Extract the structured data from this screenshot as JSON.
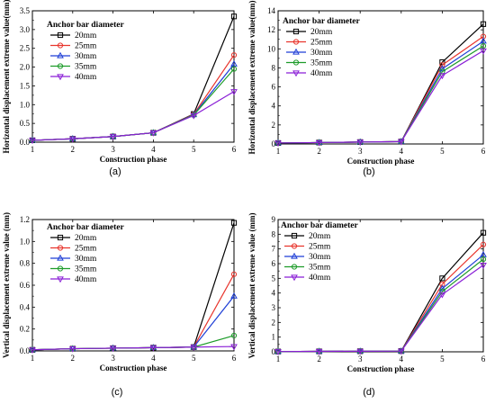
{
  "colors": {
    "20mm": "#000000",
    "25mm": "#e8352d",
    "30mm": "#1f3fd6",
    "35mm": "#1e9c2a",
    "40mm": "#8a1fd6"
  },
  "chart_data": [
    {
      "id": "a",
      "panel_label": "(a)",
      "type": "line",
      "xlabel": "Construction phase",
      "ylabel": "Horizontal displacement extreme value(mm)",
      "legend_title": "Anchor bar diameter",
      "legend_placement": "top-left",
      "x": [
        1,
        2,
        3,
        4,
        5,
        6
      ],
      "xlim": [
        1,
        6
      ],
      "ylim": [
        0,
        3.5
      ],
      "yticks": [
        0,
        0.5,
        1,
        1.5,
        2,
        2.5,
        3,
        3.5
      ],
      "ytick_labels": [
        "0.0",
        "0.5",
        "1.0",
        "1.5",
        "2.0",
        "2.5",
        "3.0",
        "3.5"
      ],
      "series": [
        {
          "name": "20mm",
          "marker": "square",
          "values": [
            0.05,
            0.09,
            0.15,
            0.25,
            0.75,
            3.35
          ]
        },
        {
          "name": "25mm",
          "marker": "circle",
          "values": [
            0.05,
            0.09,
            0.15,
            0.25,
            0.74,
            2.32
          ]
        },
        {
          "name": "30mm",
          "marker": "triangle-up",
          "values": [
            0.05,
            0.09,
            0.15,
            0.25,
            0.73,
            2.08
          ]
        },
        {
          "name": "35mm",
          "marker": "circle",
          "values": [
            0.05,
            0.09,
            0.15,
            0.25,
            0.72,
            1.95
          ]
        },
        {
          "name": "40mm",
          "marker": "triangle-down",
          "values": [
            0.05,
            0.09,
            0.15,
            0.25,
            0.71,
            1.35
          ]
        }
      ]
    },
    {
      "id": "b",
      "panel_label": "(b)",
      "type": "line",
      "xlabel": "Construction phase",
      "ylabel": "Horizontal displacement extreme value(mm)",
      "legend_title": "Anchor bar diameter",
      "legend_placement": "top-left",
      "x": [
        1,
        2,
        3,
        4,
        5,
        6
      ],
      "xlim": [
        1,
        6
      ],
      "ylim": [
        0,
        14
      ],
      "yticks": [
        0,
        2,
        4,
        6,
        8,
        10,
        12,
        14
      ],
      "ytick_labels": [
        "0",
        "2",
        "4",
        "6",
        "8",
        "10",
        "12",
        "14"
      ],
      "series": [
        {
          "name": "20mm",
          "marker": "square",
          "values": [
            0.1,
            0.15,
            0.2,
            0.25,
            8.6,
            12.6
          ]
        },
        {
          "name": "25mm",
          "marker": "circle",
          "values": [
            0.1,
            0.15,
            0.2,
            0.25,
            8.3,
            11.3
          ]
        },
        {
          "name": "30mm",
          "marker": "triangle-up",
          "values": [
            0.1,
            0.15,
            0.2,
            0.25,
            7.9,
            10.8
          ]
        },
        {
          "name": "35mm",
          "marker": "circle",
          "values": [
            0.1,
            0.15,
            0.2,
            0.25,
            7.6,
            10.3
          ]
        },
        {
          "name": "40mm",
          "marker": "triangle-down",
          "values": [
            0.1,
            0.15,
            0.2,
            0.25,
            7.2,
            9.8
          ]
        }
      ]
    },
    {
      "id": "c",
      "panel_label": "(c)",
      "type": "line",
      "xlabel": "Construction phase",
      "ylabel": "Vertical displacement extreme value (mm)",
      "legend_title": "Anchor bar diameter",
      "legend_placement": "top-left",
      "x": [
        1,
        2,
        3,
        4,
        5,
        6
      ],
      "xlim": [
        1,
        6
      ],
      "ylim": [
        0,
        1.2
      ],
      "yticks": [
        0,
        0.2,
        0.4,
        0.6,
        0.8,
        1.0,
        1.2
      ],
      "ytick_labels": [
        "0.0",
        "0.2",
        "0.4",
        "0.6",
        "0.8",
        "1.0",
        "1.2"
      ],
      "series": [
        {
          "name": "20mm",
          "marker": "square",
          "values": [
            0.01,
            0.02,
            0.025,
            0.03,
            0.035,
            1.17
          ]
        },
        {
          "name": "25mm",
          "marker": "circle",
          "values": [
            0.01,
            0.02,
            0.025,
            0.03,
            0.035,
            0.7
          ]
        },
        {
          "name": "30mm",
          "marker": "triangle-up",
          "values": [
            0.01,
            0.02,
            0.025,
            0.03,
            0.035,
            0.5
          ]
        },
        {
          "name": "35mm",
          "marker": "circle",
          "values": [
            0.01,
            0.02,
            0.025,
            0.03,
            0.035,
            0.14
          ]
        },
        {
          "name": "40mm",
          "marker": "triangle-down",
          "values": [
            0.01,
            0.02,
            0.025,
            0.03,
            0.035,
            0.04
          ]
        }
      ]
    },
    {
      "id": "d",
      "panel_label": "(d)",
      "type": "line",
      "xlabel": "Construction phase",
      "ylabel": "Vertical displacement extreme value (mm)",
      "legend_title": "Anchor bar diameter",
      "legend_placement": "top-left",
      "x": [
        1,
        2,
        3,
        4,
        5,
        6
      ],
      "xlim": [
        1,
        6
      ],
      "ylim": [
        0,
        9
      ],
      "yticks": [
        0,
        1,
        2,
        3,
        4,
        5,
        6,
        7,
        8,
        9
      ],
      "ytick_labels": [
        "0",
        "1",
        "2",
        "3",
        "4",
        "5",
        "6",
        "7",
        "8",
        "9"
      ],
      "series": [
        {
          "name": "20mm",
          "marker": "square",
          "values": [
            0.02,
            0.03,
            0.04,
            0.05,
            5.0,
            8.1
          ]
        },
        {
          "name": "25mm",
          "marker": "circle",
          "values": [
            0.02,
            0.03,
            0.04,
            0.05,
            4.6,
            7.3
          ]
        },
        {
          "name": "30mm",
          "marker": "triangle-up",
          "values": [
            0.02,
            0.03,
            0.04,
            0.05,
            4.3,
            6.6
          ]
        },
        {
          "name": "35mm",
          "marker": "circle",
          "values": [
            0.02,
            0.03,
            0.04,
            0.05,
            4.1,
            6.3
          ]
        },
        {
          "name": "40mm",
          "marker": "triangle-down",
          "values": [
            0.02,
            0.03,
            0.04,
            0.05,
            3.9,
            5.9
          ]
        }
      ]
    }
  ]
}
